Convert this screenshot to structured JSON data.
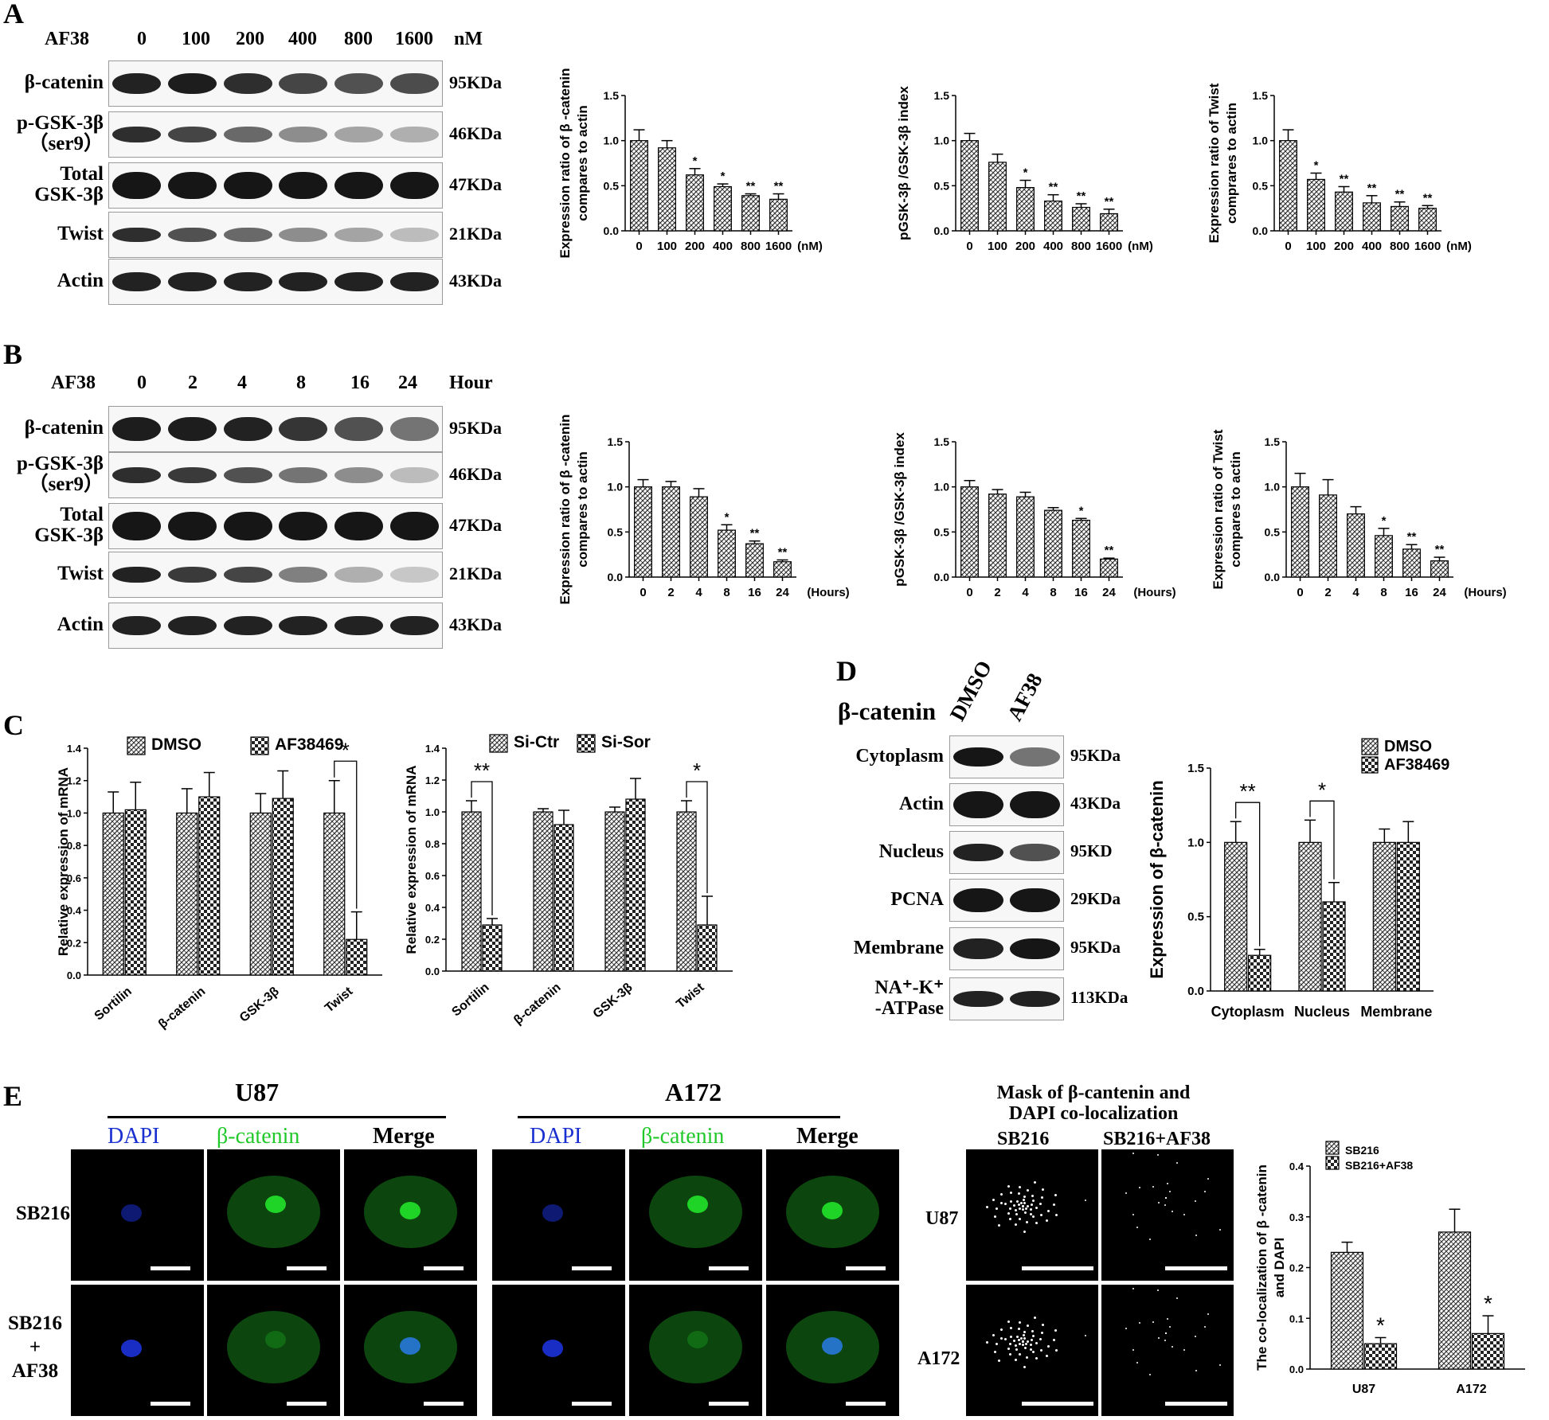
{
  "colors": {
    "hatch_fg": "#333333",
    "hatch_bg": "#ffffff",
    "dapi": "#1a2fd0",
    "catenin": "#21c829",
    "blot_bg": "#f7f7f7"
  },
  "panelA": {
    "label": "A",
    "header": [
      "AF38",
      "0",
      "100",
      "200",
      "400",
      "800",
      "1600",
      "nM"
    ],
    "rows": [
      {
        "name": "β-catenin",
        "kda": "95KDa"
      },
      {
        "name": "p-GSK-3β\n（ser9）",
        "kda": "46KDa"
      },
      {
        "name": "Total\nGSK-3β",
        "kda": "47KDa"
      },
      {
        "name": "Twist",
        "kda": "21KDa"
      },
      {
        "name": "Actin",
        "kda": "43KDa"
      }
    ]
  },
  "panelB": {
    "label": "B",
    "header": [
      "AF38",
      "0",
      "2",
      "4",
      "8",
      "16",
      "24",
      "Hour"
    ],
    "rows": [
      {
        "name": "β-catenin",
        "kda": "95KDa"
      },
      {
        "name": "p-GSK-3β\n（ser9）",
        "kda": "46KDa"
      },
      {
        "name": "Total\nGSK-3β",
        "kda": "47KDa"
      },
      {
        "name": "Twist",
        "kda": "21KDa"
      },
      {
        "name": "Actin",
        "kda": "43KDa"
      }
    ]
  },
  "panelC": {
    "label": "C"
  },
  "panelD": {
    "label": "D",
    "title": "β-catenin",
    "lanes": [
      "DMSO",
      "AF38"
    ],
    "rows": [
      {
        "name": "Cytoplasm",
        "kda": "95KDa"
      },
      {
        "name": "Actin",
        "kda": "43KDa"
      },
      {
        "name": "Nucleus",
        "kda": "95KD"
      },
      {
        "name": "PCNA",
        "kda": "29KDa"
      },
      {
        "name": "Membrane",
        "kda": "95KDa"
      },
      {
        "name": "NA⁺-K⁺\n-ATPase",
        "kda": "113KDa"
      }
    ]
  },
  "panelE": {
    "label": "E",
    "u87": "U87",
    "a172": "A172",
    "channels": [
      "DAPI",
      "β-catenin",
      "Merge"
    ],
    "rows": [
      "SB216",
      "SB216\n+\nAF38"
    ],
    "mask_title": "Mask of β-cantenin and\nDAPI co-localization",
    "mask_cols": [
      "SB216",
      "SB216+AF38"
    ],
    "mask_rows": [
      "U87",
      "A172"
    ]
  },
  "chart_data": [
    {
      "id": "A1",
      "type": "bar",
      "ylabel": "Expression ratio of β -catenin\ncompares to actin",
      "categories": [
        "0",
        "100",
        "200",
        "400",
        "800",
        "1600"
      ],
      "x_unit": "(nM)",
      "values": [
        1.0,
        0.92,
        0.62,
        0.49,
        0.39,
        0.35
      ],
      "errors": [
        0.12,
        0.08,
        0.07,
        0.03,
        0.02,
        0.06
      ],
      "sig": [
        "",
        "",
        "*",
        "*",
        "**",
        "**"
      ],
      "ylim": [
        0,
        1.5
      ],
      "yticks": [
        "0.0",
        "0.5",
        "1.0",
        "1.5"
      ]
    },
    {
      "id": "A2",
      "type": "bar",
      "ylabel": "pGSK-3β /GSK-3β  index",
      "categories": [
        "0",
        "100",
        "200",
        "400",
        "800",
        "1600"
      ],
      "x_unit": "(nM)",
      "values": [
        1.0,
        0.76,
        0.48,
        0.33,
        0.26,
        0.19
      ],
      "errors": [
        0.08,
        0.09,
        0.08,
        0.07,
        0.04,
        0.05
      ],
      "sig": [
        "",
        "",
        "*",
        "**",
        "**",
        "**"
      ],
      "ylim": [
        0,
        1.5
      ],
      "yticks": [
        "0.0",
        "0.5",
        "1.0",
        "1.5"
      ]
    },
    {
      "id": "A3",
      "type": "bar",
      "ylabel": "Expression ratio of  Twist\ncomprares to actin",
      "categories": [
        "0",
        "100",
        "200",
        "400",
        "800",
        "1600"
      ],
      "x_unit": "(nM)",
      "values": [
        1.0,
        0.57,
        0.43,
        0.31,
        0.27,
        0.25
      ],
      "errors": [
        0.12,
        0.07,
        0.06,
        0.08,
        0.05,
        0.03
      ],
      "sig": [
        "",
        "*",
        "**",
        "**",
        "**",
        "**"
      ],
      "ylim": [
        0,
        1.5
      ],
      "yticks": [
        "0.0",
        "0.5",
        "1.0",
        "1.5"
      ]
    },
    {
      "id": "B1",
      "type": "bar",
      "ylabel": "Expression ratio of β -catenin\ncompares to actin",
      "categories": [
        "0",
        "2",
        "4",
        "8",
        "16",
        "24"
      ],
      "x_unit": "(Hours)",
      "values": [
        1.0,
        1.0,
        0.89,
        0.52,
        0.37,
        0.17
      ],
      "errors": [
        0.08,
        0.06,
        0.09,
        0.06,
        0.03,
        0.02
      ],
      "sig": [
        "",
        "",
        "",
        "*",
        "**",
        "**"
      ],
      "ylim": [
        0,
        1.5
      ],
      "yticks": [
        "0.0",
        "0.5",
        "1.0",
        "1.5"
      ]
    },
    {
      "id": "B2",
      "type": "bar",
      "ylabel": "pGSK-3β /GSK-3β  index",
      "categories": [
        "0",
        "2",
        "4",
        "8",
        "16",
        "24"
      ],
      "x_unit": "(Hours)",
      "values": [
        1.0,
        0.92,
        0.89,
        0.74,
        0.63,
        0.2
      ],
      "errors": [
        0.07,
        0.05,
        0.05,
        0.03,
        0.02,
        0.01
      ],
      "sig": [
        "",
        "",
        "",
        "",
        "*",
        "**"
      ],
      "ylim": [
        0,
        1.5
      ],
      "yticks": [
        "0.0",
        "0.5",
        "1.0",
        "1.5"
      ]
    },
    {
      "id": "B3",
      "type": "bar",
      "ylabel": "Expression ratio of Twist\ncompares to actin",
      "categories": [
        "0",
        "2",
        "4",
        "8",
        "16",
        "24"
      ],
      "x_unit": "(Hours)",
      "values": [
        1.0,
        0.91,
        0.7,
        0.46,
        0.31,
        0.18
      ],
      "errors": [
        0.15,
        0.17,
        0.08,
        0.08,
        0.05,
        0.04
      ],
      "sig": [
        "",
        "",
        "",
        "*",
        "**",
        "**"
      ],
      "ylim": [
        0,
        1.5
      ],
      "yticks": [
        "0.0",
        "0.5",
        "1.0",
        "1.5"
      ]
    },
    {
      "id": "C1",
      "type": "bar",
      "ylabel": "Relative expression of mRNA",
      "categories": [
        "Sortilin",
        "β-catenin",
        "GSK-3β",
        "Twist"
      ],
      "series": [
        {
          "name": "DMSO",
          "values": [
            1.0,
            1.0,
            1.0,
            1.0
          ],
          "errors": [
            0.13,
            0.15,
            0.12,
            0.2
          ]
        },
        {
          "name": "AF38469",
          "values": [
            1.02,
            1.1,
            1.09,
            0.22
          ],
          "errors": [
            0.17,
            0.15,
            0.17,
            0.17
          ]
        }
      ],
      "brackets": [
        {
          "cat": 3,
          "label": "*"
        }
      ],
      "ylim": [
        0,
        1.4
      ],
      "yticks": [
        "0.0",
        "0.2",
        "0.4",
        "0.6",
        "0.8",
        "1.0",
        "1.2",
        "1.4"
      ]
    },
    {
      "id": "C2",
      "type": "bar",
      "ylabel": "Relative expression of mRNA",
      "categories": [
        "Sortilin",
        "β-catenin",
        "GSK-3β",
        "Twist"
      ],
      "series": [
        {
          "name": "Si-Ctr",
          "values": [
            1.0,
            1.0,
            1.0,
            1.0
          ],
          "errors": [
            0.07,
            0.02,
            0.03,
            0.07
          ]
        },
        {
          "name": "Si-Sor",
          "values": [
            0.29,
            0.92,
            1.08,
            0.29
          ],
          "errors": [
            0.04,
            0.09,
            0.13,
            0.18
          ]
        }
      ],
      "brackets": [
        {
          "cat": 0,
          "label": "**"
        },
        {
          "cat": 3,
          "label": "*"
        }
      ],
      "ylim": [
        0,
        1.4
      ],
      "yticks": [
        "0.0",
        "0.2",
        "0.4",
        "0.6",
        "0.8",
        "1.0",
        "1.2",
        "1.4"
      ]
    },
    {
      "id": "D1",
      "type": "bar",
      "ylabel": "Expression of β-catenin",
      "categories": [
        "Cytoplasm",
        "Nucleus",
        "Membrane"
      ],
      "series": [
        {
          "name": "DMSO",
          "values": [
            1.0,
            1.0,
            1.0
          ],
          "errors": [
            0.14,
            0.15,
            0.09
          ]
        },
        {
          "name": "AF38469",
          "values": [
            0.24,
            0.6,
            1.0
          ],
          "errors": [
            0.04,
            0.13,
            0.14
          ]
        }
      ],
      "brackets": [
        {
          "cat": 0,
          "label": "**"
        },
        {
          "cat": 1,
          "label": "*"
        }
      ],
      "ylim": [
        0,
        1.5
      ],
      "yticks": [
        "0.0",
        "0.5",
        "1.0",
        "1.5"
      ]
    },
    {
      "id": "E1",
      "type": "bar",
      "ylabel": "The co-localization of β -catenin\nand DAPI",
      "categories": [
        "U87",
        "A172"
      ],
      "series": [
        {
          "name": "SB216",
          "values": [
            0.23,
            0.27
          ],
          "errors": [
            0.02,
            0.045
          ]
        },
        {
          "name": "SB216+AF38",
          "values": [
            0.05,
            0.07
          ],
          "errors": [
            0.012,
            0.035
          ]
        }
      ],
      "marks": [
        "*",
        "*"
      ],
      "ylim": [
        0,
        0.4
      ],
      "yticks": [
        "0.0",
        "0.1",
        "0.2",
        "0.3",
        "0.4"
      ]
    }
  ]
}
